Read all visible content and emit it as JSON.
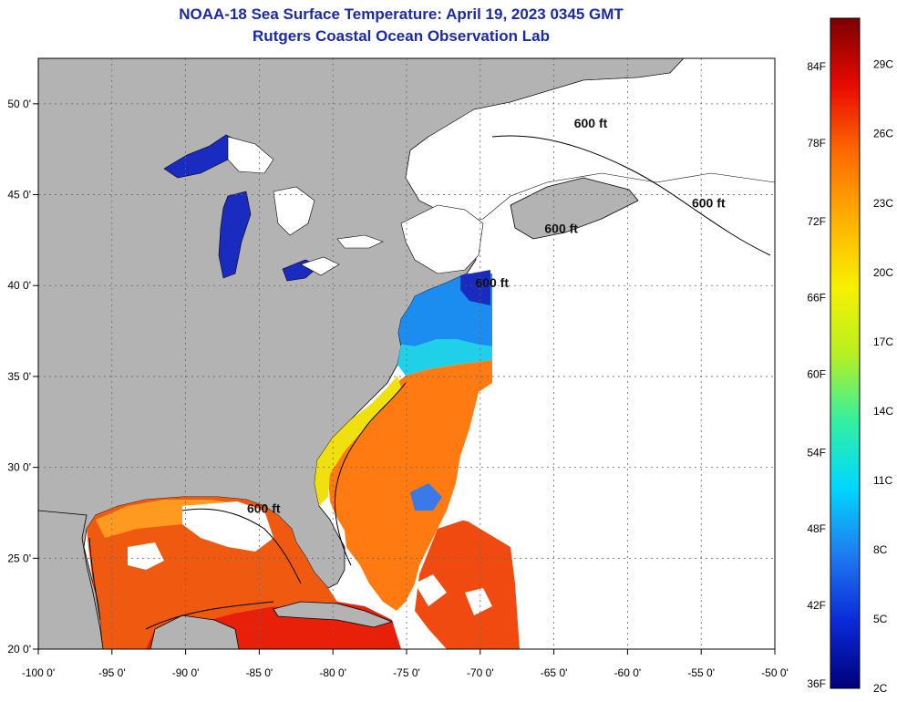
{
  "title": "NOAA-18 Sea Surface Temperature:  April 19, 2023 0345 GMT",
  "subtitle": "Rutgers Coastal Ocean Observation Lab",
  "map": {
    "lon_range": [
      -100,
      -50
    ],
    "lat_range": [
      20,
      52.5
    ],
    "lon_ticks": [
      {
        "v": -100,
        "label": "-100 0'"
      },
      {
        "v": -95,
        "label": "-95 0'"
      },
      {
        "v": -90,
        "label": "-90 0'"
      },
      {
        "v": -85,
        "label": "-85 0'"
      },
      {
        "v": -80,
        "label": "-80 0'"
      },
      {
        "v": -75,
        "label": "-75 0'"
      },
      {
        "v": -70,
        "label": "-70 0'"
      },
      {
        "v": -65,
        "label": "-65 0'"
      },
      {
        "v": -60,
        "label": "-60 0'"
      },
      {
        "v": -55,
        "label": "-55 0'"
      },
      {
        "v": -50,
        "label": "-50 0'"
      }
    ],
    "lat_ticks": [
      {
        "v": 20,
        "label": "20 0'"
      },
      {
        "v": 25,
        "label": "25 0'"
      },
      {
        "v": 30,
        "label": "30 0'"
      },
      {
        "v": 35,
        "label": "35 0'"
      },
      {
        "v": 40,
        "label": "40 0'"
      },
      {
        "v": 45,
        "label": "45 0'"
      },
      {
        "v": 50,
        "label": "50 0'"
      }
    ],
    "isobath_labels": [
      {
        "text": "600 ft",
        "lon": -62.5,
        "lat": 48.7
      },
      {
        "text": "600 ft",
        "lon": -54.5,
        "lat": 44.3
      },
      {
        "text": "600 ft",
        "lon": -64.5,
        "lat": 42.9
      },
      {
        "text": "600 ft",
        "lon": -69.2,
        "lat": 39.9
      },
      {
        "text": "600 ft",
        "lon": -84.7,
        "lat": 27.5
      }
    ],
    "colors": {
      "land": "#b3b3b3",
      "cloud": "#ffffff",
      "outline": "#000000",
      "grid": "#666666"
    }
  },
  "colorbar": {
    "fahrenheit": [
      {
        "label": "84F",
        "temp_c": 28.9
      },
      {
        "label": "78F",
        "temp_c": 25.6
      },
      {
        "label": "72F",
        "temp_c": 22.2
      },
      {
        "label": "66F",
        "temp_c": 18.9
      },
      {
        "label": "60F",
        "temp_c": 15.6
      },
      {
        "label": "54F",
        "temp_c": 12.2
      },
      {
        "label": "48F",
        "temp_c": 8.9
      },
      {
        "label": "42F",
        "temp_c": 5.6
      },
      {
        "label": "36F",
        "temp_c": 2.2
      }
    ],
    "celsius": [
      {
        "label": "29C",
        "temp_c": 29
      },
      {
        "label": "26C",
        "temp_c": 26
      },
      {
        "label": "23C",
        "temp_c": 23
      },
      {
        "label": "20C",
        "temp_c": 20
      },
      {
        "label": "17C",
        "temp_c": 17
      },
      {
        "label": "14C",
        "temp_c": 14
      },
      {
        "label": "11C",
        "temp_c": 11
      },
      {
        "label": "8C",
        "temp_c": 8
      },
      {
        "label": "5C",
        "temp_c": 5
      },
      {
        "label": "2C",
        "temp_c": 2
      }
    ],
    "range_c": [
      2,
      31
    ],
    "stops": [
      "#00007a",
      "#0a2ad8",
      "#1e7cf0",
      "#00d8ff",
      "#33f0a0",
      "#b8f020",
      "#f8f000",
      "#ffb000",
      "#ff6a00",
      "#e80a00",
      "#7a0000"
    ]
  }
}
